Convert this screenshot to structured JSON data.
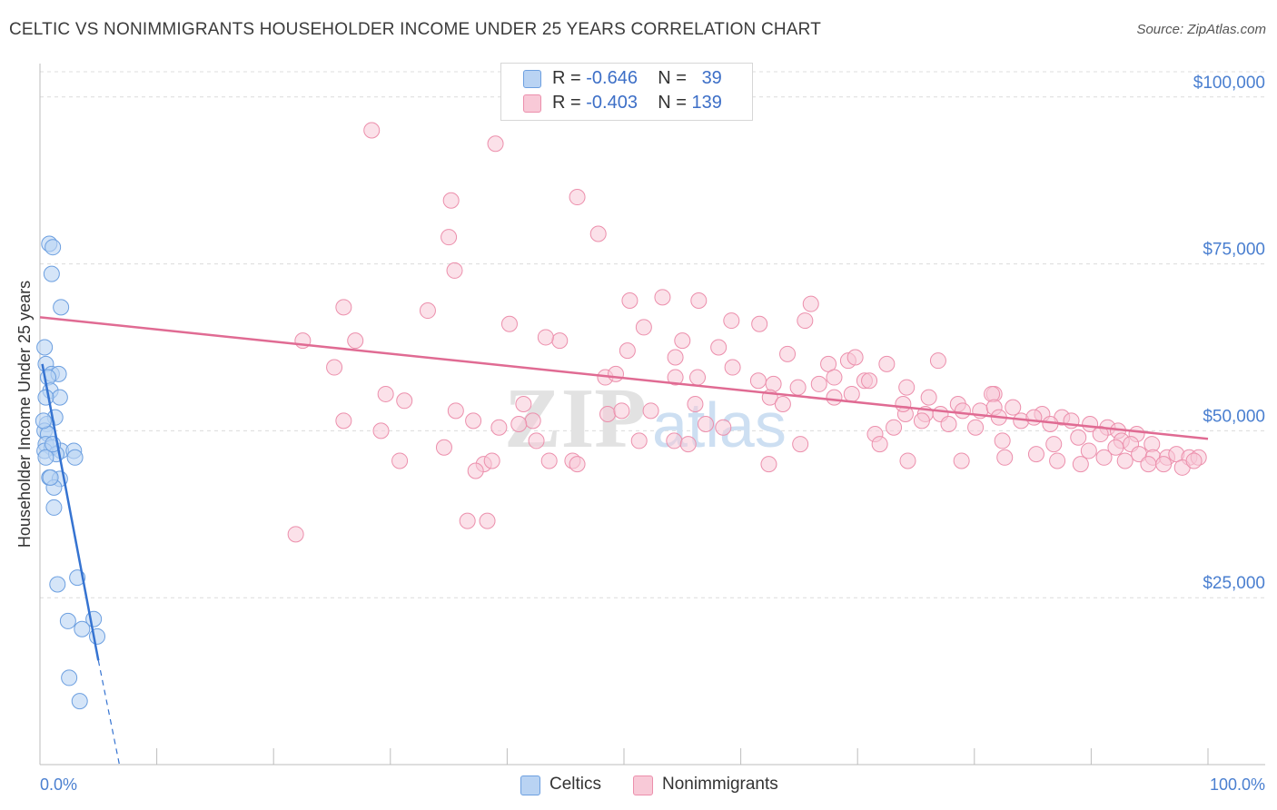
{
  "title": "CELTIC VS NONIMMIGRANTS HOUSEHOLDER INCOME UNDER 25 YEARS CORRELATION CHART",
  "source": "Source: ZipAtlas.com",
  "watermark": {
    "zip": "ZIP",
    "atlas": "atlas"
  },
  "legend_box": {
    "rows": [
      {
        "r_label": "R =",
        "r_value": "-0.646",
        "n_label": "N =",
        "n_value": "39"
      },
      {
        "r_label": "R =",
        "r_value": "-0.403",
        "n_label": "N =",
        "n_value": "139"
      }
    ]
  },
  "bottom_legend": [
    "Celtics",
    "Nonimmigrants"
  ],
  "colors": {
    "celtics_fill": "#b9d3f3",
    "celtics_stroke": "#6c9fe0",
    "celtics_line": "#3573d1",
    "nonimm_fill": "#f8c9d7",
    "nonimm_stroke": "#ec8fac",
    "nonimm_line": "#e06b93",
    "axis_label": "#4a7fd0",
    "grid": "#dcdcdc"
  },
  "chart_data": {
    "type": "scatter",
    "xlabel": "",
    "ylabel": "Householder Income Under 25 years",
    "xlim": [
      0,
      100
    ],
    "ylim": [
      0,
      105000
    ],
    "x_tick_labels": [
      "0.0%",
      "100.0%"
    ],
    "y_ticks": [
      25000,
      50000,
      75000,
      100000
    ],
    "y_tick_labels": [
      "$25,000",
      "$50,000",
      "$75,000",
      "$100,000"
    ],
    "grid": true,
    "series": [
      {
        "name": "Celtics",
        "points": [
          [
            0.8,
            78000
          ],
          [
            1.1,
            77500
          ],
          [
            1.0,
            73500
          ],
          [
            1.8,
            68500
          ],
          [
            0.4,
            62500
          ],
          [
            0.5,
            60000
          ],
          [
            1.0,
            58500
          ],
          [
            1.6,
            58500
          ],
          [
            0.7,
            58000
          ],
          [
            0.9,
            56000
          ],
          [
            1.7,
            55000
          ],
          [
            0.5,
            55000
          ],
          [
            1.3,
            52000
          ],
          [
            0.6,
            51000
          ],
          [
            0.4,
            50000
          ],
          [
            0.7,
            49500
          ],
          [
            0.5,
            48000
          ],
          [
            1.0,
            47500
          ],
          [
            0.4,
            47000
          ],
          [
            1.8,
            47000
          ],
          [
            2.9,
            47000
          ],
          [
            1.4,
            46500
          ],
          [
            0.5,
            46000
          ],
          [
            3.0,
            46000
          ],
          [
            0.8,
            43000
          ],
          [
            1.7,
            42800
          ],
          [
            1.2,
            41500
          ],
          [
            1.2,
            38500
          ],
          [
            3.2,
            28000
          ],
          [
            1.5,
            27000
          ],
          [
            2.4,
            21500
          ],
          [
            4.6,
            21800
          ],
          [
            3.6,
            20300
          ],
          [
            4.9,
            19200
          ],
          [
            2.5,
            13000
          ],
          [
            3.4,
            9500
          ],
          [
            0.9,
            43000
          ],
          [
            0.3,
            51500
          ],
          [
            1.1,
            48000
          ]
        ]
      },
      {
        "name": "Nonimmigrants",
        "points": [
          [
            28.4,
            95000
          ],
          [
            39.0,
            93000
          ],
          [
            35.2,
            84500
          ],
          [
            46.0,
            85000
          ],
          [
            35.0,
            79000
          ],
          [
            47.8,
            79500
          ],
          [
            35.5,
            74000
          ],
          [
            26.0,
            68500
          ],
          [
            33.2,
            68000
          ],
          [
            40.2,
            66000
          ],
          [
            22.5,
            63500
          ],
          [
            27.0,
            63500
          ],
          [
            44.5,
            63500
          ],
          [
            43.3,
            64000
          ],
          [
            50.5,
            69500
          ],
          [
            53.3,
            70000
          ],
          [
            56.4,
            69500
          ],
          [
            59.2,
            66500
          ],
          [
            51.7,
            65500
          ],
          [
            61.6,
            66000
          ],
          [
            65.5,
            66500
          ],
          [
            66.0,
            69000
          ],
          [
            55.0,
            63500
          ],
          [
            50.3,
            62000
          ],
          [
            58.1,
            62500
          ],
          [
            54.4,
            61000
          ],
          [
            64.0,
            61500
          ],
          [
            67.5,
            60000
          ],
          [
            69.2,
            60500
          ],
          [
            69.8,
            61000
          ],
          [
            72.5,
            60000
          ],
          [
            76.9,
            60500
          ],
          [
            25.2,
            59500
          ],
          [
            59.3,
            59500
          ],
          [
            48.4,
            58000
          ],
          [
            49.3,
            58500
          ],
          [
            54.4,
            58000
          ],
          [
            56.3,
            58000
          ],
          [
            61.5,
            57500
          ],
          [
            62.8,
            57000
          ],
          [
            68.0,
            58000
          ],
          [
            70.6,
            57500
          ],
          [
            71.0,
            57500
          ],
          [
            64.9,
            56500
          ],
          [
            66.7,
            57000
          ],
          [
            74.2,
            56500
          ],
          [
            76.1,
            55000
          ],
          [
            74.1,
            52500
          ],
          [
            78.6,
            54000
          ],
          [
            81.7,
            55500
          ],
          [
            81.5,
            55500
          ],
          [
            29.6,
            55500
          ],
          [
            31.2,
            54500
          ],
          [
            41.4,
            54000
          ],
          [
            56.1,
            54000
          ],
          [
            62.5,
            55000
          ],
          [
            63.6,
            54000
          ],
          [
            68.0,
            55000
          ],
          [
            69.5,
            55500
          ],
          [
            73.9,
            54000
          ],
          [
            75.8,
            52500
          ],
          [
            77.1,
            52500
          ],
          [
            79.0,
            53000
          ],
          [
            80.5,
            53000
          ],
          [
            81.7,
            53500
          ],
          [
            83.3,
            53500
          ],
          [
            85.8,
            52500
          ],
          [
            87.5,
            52000
          ],
          [
            88.3,
            51500
          ],
          [
            89.9,
            51000
          ],
          [
            91.4,
            50500
          ],
          [
            92.3,
            50000
          ],
          [
            93.9,
            49500
          ],
          [
            35.6,
            53000
          ],
          [
            37.1,
            51500
          ],
          [
            48.6,
            52500
          ],
          [
            49.8,
            53000
          ],
          [
            52.3,
            53000
          ],
          [
            42.2,
            51500
          ],
          [
            57.0,
            51000
          ],
          [
            58.5,
            50500
          ],
          [
            71.5,
            49500
          ],
          [
            73.1,
            50500
          ],
          [
            75.5,
            51500
          ],
          [
            77.8,
            51000
          ],
          [
            80.1,
            50500
          ],
          [
            82.1,
            52000
          ],
          [
            84.0,
            51500
          ],
          [
            85.1,
            52000
          ],
          [
            86.5,
            51000
          ],
          [
            88.9,
            49000
          ],
          [
            90.8,
            49500
          ],
          [
            92.6,
            48500
          ],
          [
            93.4,
            48000
          ],
          [
            95.2,
            48000
          ],
          [
            26.0,
            51500
          ],
          [
            29.2,
            50000
          ],
          [
            39.3,
            50500
          ],
          [
            41.0,
            51000
          ],
          [
            42.5,
            48500
          ],
          [
            51.3,
            48500
          ],
          [
            54.3,
            48500
          ],
          [
            55.5,
            48000
          ],
          [
            65.1,
            48000
          ],
          [
            71.9,
            48000
          ],
          [
            82.4,
            48500
          ],
          [
            86.8,
            48000
          ],
          [
            89.8,
            47000
          ],
          [
            92.1,
            47500
          ],
          [
            94.1,
            46500
          ],
          [
            95.3,
            46000
          ],
          [
            96.5,
            46000
          ],
          [
            97.3,
            46500
          ],
          [
            98.4,
            46000
          ],
          [
            99.2,
            46000
          ],
          [
            34.6,
            47500
          ],
          [
            30.8,
            45500
          ],
          [
            38.0,
            45000
          ],
          [
            38.7,
            45500
          ],
          [
            43.6,
            45500
          ],
          [
            45.6,
            45500
          ],
          [
            46.0,
            45000
          ],
          [
            62.4,
            45000
          ],
          [
            74.3,
            45500
          ],
          [
            78.9,
            45500
          ],
          [
            82.6,
            46000
          ],
          [
            85.3,
            46500
          ],
          [
            87.1,
            45500
          ],
          [
            89.1,
            45000
          ],
          [
            91.1,
            46000
          ],
          [
            92.9,
            45500
          ],
          [
            94.9,
            45000
          ],
          [
            96.2,
            45000
          ],
          [
            97.8,
            44500
          ],
          [
            98.8,
            45500
          ],
          [
            37.3,
            44000
          ],
          [
            21.9,
            34500
          ],
          [
            36.6,
            36500
          ],
          [
            38.3,
            36500
          ]
        ]
      }
    ],
    "trend_lines": [
      {
        "series": "Celtics",
        "from": [
          0.2,
          60000
        ],
        "to": [
          5.0,
          15600
        ],
        "dashed_to": [
          6.8,
          0
        ]
      },
      {
        "series": "Nonimmigrants",
        "from": [
          0,
          67000
        ],
        "to": [
          100,
          48800
        ]
      }
    ]
  }
}
